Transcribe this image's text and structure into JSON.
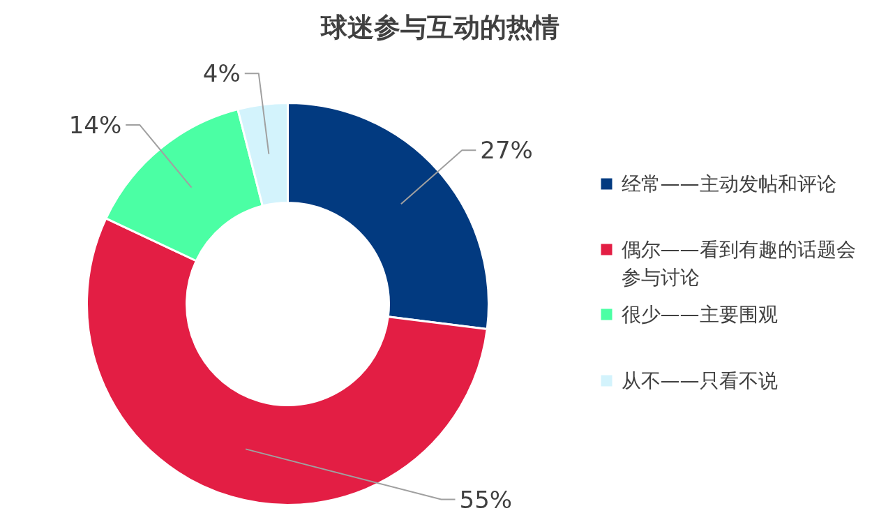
{
  "chart_data": {
    "type": "donut",
    "title": "球迷参与互动的热情",
    "categories": [
      "经常——主动发帖和评论",
      "偶尔——看到有趣的话题会参与讨论",
      "很少——主要围观",
      "从不——只看不说"
    ],
    "values": [
      27,
      55,
      14,
      4
    ],
    "colors": [
      "#023a80",
      "#e31e44",
      "#4bffa4",
      "#d3f3fc"
    ],
    "value_labels": [
      "27%",
      "55%",
      "14%",
      "4%"
    ],
    "legend": "right"
  }
}
